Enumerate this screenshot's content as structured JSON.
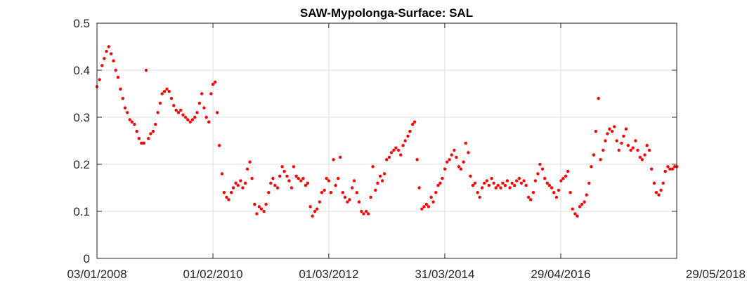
{
  "chart_data": {
    "type": "scatter",
    "title": "SAW-Mypolonga-Surface: SAL",
    "xlabel": "",
    "ylabel": "",
    "x_axis_type": "date",
    "xlim": [
      "2008-01-03",
      "2018-05-29"
    ],
    "ylim": [
      0,
      0.5
    ],
    "x_ticks": [
      {
        "date": "2008-01-03",
        "label": "03/01/2008"
      },
      {
        "date": "2010-02-01",
        "label": "01/02/2010"
      },
      {
        "date": "2012-03-01",
        "label": "01/03/2012"
      },
      {
        "date": "2014-03-31",
        "label": "31/03/2014"
      },
      {
        "date": "2016-04-29",
        "label": "29/04/2016"
      },
      {
        "date": "2018-05-29",
        "label": "29/05/2018"
      }
    ],
    "y_ticks": [
      {
        "value": 0,
        "label": "0"
      },
      {
        "value": 0.1,
        "label": "0.1"
      },
      {
        "value": 0.2,
        "label": "0.2"
      },
      {
        "value": 0.3,
        "label": "0.3"
      },
      {
        "value": 0.4,
        "label": "0.4"
      },
      {
        "value": 0.5,
        "label": "0.5"
      }
    ],
    "grid": true,
    "marker_color": "#ff0000",
    "series": [
      {
        "points": [
          [
            "2008-01-03",
            0.365
          ],
          [
            "2008-01-20",
            0.38
          ],
          [
            "2008-02-05",
            0.41
          ],
          [
            "2008-02-20",
            0.425
          ],
          [
            "2008-03-05",
            0.44
          ],
          [
            "2008-03-20",
            0.45
          ],
          [
            "2008-04-05",
            0.435
          ],
          [
            "2008-04-20",
            0.42
          ],
          [
            "2008-05-05",
            0.4
          ],
          [
            "2008-05-20",
            0.385
          ],
          [
            "2008-06-05",
            0.36
          ],
          [
            "2008-06-20",
            0.34
          ],
          [
            "2008-07-05",
            0.32
          ],
          [
            "2008-07-20",
            0.31
          ],
          [
            "2008-08-05",
            0.295
          ],
          [
            "2008-08-20",
            0.29
          ],
          [
            "2008-09-05",
            0.285
          ],
          [
            "2008-09-20",
            0.27
          ],
          [
            "2008-10-05",
            0.255
          ],
          [
            "2008-10-20",
            0.245
          ],
          [
            "2008-11-05",
            0.245
          ],
          [
            "2008-11-20",
            0.4
          ],
          [
            "2008-12-05",
            0.255
          ],
          [
            "2008-12-20",
            0.265
          ],
          [
            "2009-01-05",
            0.27
          ],
          [
            "2009-01-20",
            0.285
          ],
          [
            "2009-02-05",
            0.31
          ],
          [
            "2009-02-20",
            0.33
          ],
          [
            "2009-03-05",
            0.35
          ],
          [
            "2009-03-20",
            0.355
          ],
          [
            "2009-04-05",
            0.36
          ],
          [
            "2009-04-20",
            0.355
          ],
          [
            "2009-05-05",
            0.34
          ],
          [
            "2009-05-20",
            0.325
          ],
          [
            "2009-06-05",
            0.315
          ],
          [
            "2009-06-20",
            0.31
          ],
          [
            "2009-07-05",
            0.315
          ],
          [
            "2009-07-20",
            0.305
          ],
          [
            "2009-08-05",
            0.3
          ],
          [
            "2009-08-20",
            0.295
          ],
          [
            "2009-09-05",
            0.29
          ],
          [
            "2009-09-20",
            0.295
          ],
          [
            "2009-10-05",
            0.3
          ],
          [
            "2009-10-20",
            0.31
          ],
          [
            "2009-11-05",
            0.33
          ],
          [
            "2009-11-20",
            0.35
          ],
          [
            "2009-12-05",
            0.32
          ],
          [
            "2009-12-20",
            0.3
          ],
          [
            "2010-01-05",
            0.29
          ],
          [
            "2010-01-20",
            0.35
          ],
          [
            "2010-02-01",
            0.37
          ],
          [
            "2010-02-15",
            0.375
          ],
          [
            "2010-03-01",
            0.31
          ],
          [
            "2010-03-15",
            0.24
          ],
          [
            "2010-04-01",
            0.18
          ],
          [
            "2010-04-15",
            0.14
          ],
          [
            "2010-05-01",
            0.13
          ],
          [
            "2010-05-15",
            0.125
          ],
          [
            "2010-06-01",
            0.14
          ],
          [
            "2010-06-15",
            0.15
          ],
          [
            "2010-07-01",
            0.16
          ],
          [
            "2010-07-15",
            0.155
          ],
          [
            "2010-08-01",
            0.165
          ],
          [
            "2010-08-15",
            0.15
          ],
          [
            "2010-09-01",
            0.16
          ],
          [
            "2010-09-15",
            0.19
          ],
          [
            "2010-10-01",
            0.205
          ],
          [
            "2010-10-15",
            0.17
          ],
          [
            "2010-11-01",
            0.115
          ],
          [
            "2010-11-15",
            0.095
          ],
          [
            "2010-12-01",
            0.11
          ],
          [
            "2010-12-15",
            0.105
          ],
          [
            "2011-01-01",
            0.1
          ],
          [
            "2011-01-15",
            0.115
          ],
          [
            "2011-02-01",
            0.14
          ],
          [
            "2011-02-15",
            0.16
          ],
          [
            "2011-03-01",
            0.17
          ],
          [
            "2011-03-15",
            0.155
          ],
          [
            "2011-04-01",
            0.15
          ],
          [
            "2011-04-15",
            0.175
          ],
          [
            "2011-05-01",
            0.195
          ],
          [
            "2011-05-15",
            0.185
          ],
          [
            "2011-06-01",
            0.175
          ],
          [
            "2011-06-15",
            0.165
          ],
          [
            "2011-07-01",
            0.15
          ],
          [
            "2011-07-15",
            0.195
          ],
          [
            "2011-08-01",
            0.175
          ],
          [
            "2011-08-15",
            0.17
          ],
          [
            "2011-09-01",
            0.165
          ],
          [
            "2011-09-15",
            0.17
          ],
          [
            "2011-10-01",
            0.155
          ],
          [
            "2011-10-15",
            0.16
          ],
          [
            "2011-11-01",
            0.11
          ],
          [
            "2011-11-15",
            0.09
          ],
          [
            "2011-12-01",
            0.1
          ],
          [
            "2011-12-15",
            0.105
          ],
          [
            "2012-01-01",
            0.12
          ],
          [
            "2012-01-15",
            0.14
          ],
          [
            "2012-02-01",
            0.145
          ],
          [
            "2012-02-15",
            0.17
          ],
          [
            "2012-03-01",
            0.165
          ],
          [
            "2012-03-15",
            0.14
          ],
          [
            "2012-04-01",
            0.21
          ],
          [
            "2012-04-15",
            0.155
          ],
          [
            "2012-05-01",
            0.17
          ],
          [
            "2012-05-15",
            0.215
          ],
          [
            "2012-06-01",
            0.14
          ],
          [
            "2012-06-15",
            0.13
          ],
          [
            "2012-07-01",
            0.12
          ],
          [
            "2012-07-15",
            0.125
          ],
          [
            "2012-08-01",
            0.15
          ],
          [
            "2012-08-15",
            0.165
          ],
          [
            "2012-09-01",
            0.14
          ],
          [
            "2012-09-15",
            0.12
          ],
          [
            "2012-10-01",
            0.1
          ],
          [
            "2012-10-15",
            0.095
          ],
          [
            "2012-11-01",
            0.1
          ],
          [
            "2012-11-15",
            0.095
          ],
          [
            "2012-12-01",
            0.13
          ],
          [
            "2012-12-15",
            0.195
          ],
          [
            "2013-01-01",
            0.145
          ],
          [
            "2013-01-15",
            0.16
          ],
          [
            "2013-02-01",
            0.175
          ],
          [
            "2013-02-15",
            0.165
          ],
          [
            "2013-03-01",
            0.18
          ],
          [
            "2013-03-15",
            0.21
          ],
          [
            "2013-04-01",
            0.215
          ],
          [
            "2013-04-15",
            0.225
          ],
          [
            "2013-05-01",
            0.23
          ],
          [
            "2013-05-15",
            0.235
          ],
          [
            "2013-06-01",
            0.23
          ],
          [
            "2013-06-15",
            0.22
          ],
          [
            "2013-07-01",
            0.24
          ],
          [
            "2013-07-15",
            0.25
          ],
          [
            "2013-08-01",
            0.26
          ],
          [
            "2013-08-15",
            0.27
          ],
          [
            "2013-09-01",
            0.285
          ],
          [
            "2013-09-15",
            0.29
          ],
          [
            "2013-10-01",
            0.21
          ],
          [
            "2013-10-15",
            0.15
          ],
          [
            "2013-11-01",
            0.105
          ],
          [
            "2013-11-15",
            0.11
          ],
          [
            "2013-12-01",
            0.115
          ],
          [
            "2013-12-15",
            0.11
          ],
          [
            "2014-01-01",
            0.13
          ],
          [
            "2014-01-15",
            0.12
          ],
          [
            "2014-02-01",
            0.14
          ],
          [
            "2014-02-15",
            0.155
          ],
          [
            "2014-03-01",
            0.16
          ],
          [
            "2014-03-15",
            0.17
          ],
          [
            "2014-04-01",
            0.19
          ],
          [
            "2014-04-15",
            0.205
          ],
          [
            "2014-05-01",
            0.21
          ],
          [
            "2014-05-15",
            0.22
          ],
          [
            "2014-06-01",
            0.23
          ],
          [
            "2014-06-15",
            0.215
          ],
          [
            "2014-07-01",
            0.195
          ],
          [
            "2014-07-15",
            0.19
          ],
          [
            "2014-08-01",
            0.205
          ],
          [
            "2014-08-15",
            0.245
          ],
          [
            "2014-09-01",
            0.225
          ],
          [
            "2014-09-15",
            0.175
          ],
          [
            "2014-10-01",
            0.155
          ],
          [
            "2014-10-15",
            0.16
          ],
          [
            "2014-11-01",
            0.14
          ],
          [
            "2014-11-15",
            0.13
          ],
          [
            "2014-12-01",
            0.15
          ],
          [
            "2014-12-15",
            0.16
          ],
          [
            "2015-01-01",
            0.165
          ],
          [
            "2015-01-15",
            0.155
          ],
          [
            "2015-02-01",
            0.17
          ],
          [
            "2015-02-15",
            0.16
          ],
          [
            "2015-03-01",
            0.15
          ],
          [
            "2015-03-15",
            0.155
          ],
          [
            "2015-04-01",
            0.15
          ],
          [
            "2015-04-15",
            0.16
          ],
          [
            "2015-05-01",
            0.155
          ],
          [
            "2015-05-15",
            0.165
          ],
          [
            "2015-06-01",
            0.15
          ],
          [
            "2015-06-15",
            0.16
          ],
          [
            "2015-07-01",
            0.155
          ],
          [
            "2015-07-15",
            0.165
          ],
          [
            "2015-08-01",
            0.17
          ],
          [
            "2015-08-15",
            0.16
          ],
          [
            "2015-09-01",
            0.165
          ],
          [
            "2015-09-15",
            0.155
          ],
          [
            "2015-10-01",
            0.13
          ],
          [
            "2015-10-15",
            0.125
          ],
          [
            "2015-11-01",
            0.14
          ],
          [
            "2015-11-15",
            0.165
          ],
          [
            "2015-12-01",
            0.18
          ],
          [
            "2015-12-15",
            0.2
          ],
          [
            "2016-01-01",
            0.19
          ],
          [
            "2016-01-15",
            0.17
          ],
          [
            "2016-02-01",
            0.16
          ],
          [
            "2016-02-15",
            0.155
          ],
          [
            "2016-03-01",
            0.15
          ],
          [
            "2016-03-15",
            0.14
          ],
          [
            "2016-04-01",
            0.13
          ],
          [
            "2016-04-15",
            0.145
          ],
          [
            "2016-05-01",
            0.165
          ],
          [
            "2016-05-15",
            0.17
          ],
          [
            "2016-06-01",
            0.175
          ],
          [
            "2016-06-15",
            0.185
          ],
          [
            "2016-07-01",
            0.14
          ],
          [
            "2016-07-15",
            0.105
          ],
          [
            "2016-08-01",
            0.095
          ],
          [
            "2016-08-15",
            0.09
          ],
          [
            "2016-09-01",
            0.11
          ],
          [
            "2016-09-15",
            0.115
          ],
          [
            "2016-10-01",
            0.12
          ],
          [
            "2016-10-15",
            0.135
          ],
          [
            "2016-11-01",
            0.16
          ],
          [
            "2016-11-15",
            0.195
          ],
          [
            "2016-12-01",
            0.22
          ],
          [
            "2016-12-15",
            0.27
          ],
          [
            "2017-01-01",
            0.34
          ],
          [
            "2017-01-15",
            0.21
          ],
          [
            "2017-02-01",
            0.23
          ],
          [
            "2017-02-15",
            0.25
          ],
          [
            "2017-03-01",
            0.265
          ],
          [
            "2017-03-15",
            0.275
          ],
          [
            "2017-04-01",
            0.27
          ],
          [
            "2017-04-15",
            0.28
          ],
          [
            "2017-05-01",
            0.25
          ],
          [
            "2017-05-15",
            0.23
          ],
          [
            "2017-06-01",
            0.245
          ],
          [
            "2017-06-15",
            0.26
          ],
          [
            "2017-07-01",
            0.275
          ],
          [
            "2017-07-15",
            0.24
          ],
          [
            "2017-08-01",
            0.23
          ],
          [
            "2017-08-15",
            0.235
          ],
          [
            "2017-09-01",
            0.25
          ],
          [
            "2017-09-15",
            0.23
          ],
          [
            "2017-10-01",
            0.215
          ],
          [
            "2017-10-15",
            0.21
          ],
          [
            "2017-11-01",
            0.22
          ],
          [
            "2017-11-15",
            0.24
          ],
          [
            "2017-12-01",
            0.23
          ],
          [
            "2017-12-15",
            0.19
          ],
          [
            "2018-01-01",
            0.16
          ],
          [
            "2018-01-15",
            0.14
          ],
          [
            "2018-02-01",
            0.135
          ],
          [
            "2018-02-15",
            0.145
          ],
          [
            "2018-03-01",
            0.16
          ],
          [
            "2018-03-15",
            0.185
          ],
          [
            "2018-04-01",
            0.195
          ],
          [
            "2018-04-15",
            0.19
          ],
          [
            "2018-05-01",
            0.19
          ],
          [
            "2018-05-15",
            0.195
          ],
          [
            "2018-05-29",
            0.195
          ]
        ]
      }
    ]
  }
}
